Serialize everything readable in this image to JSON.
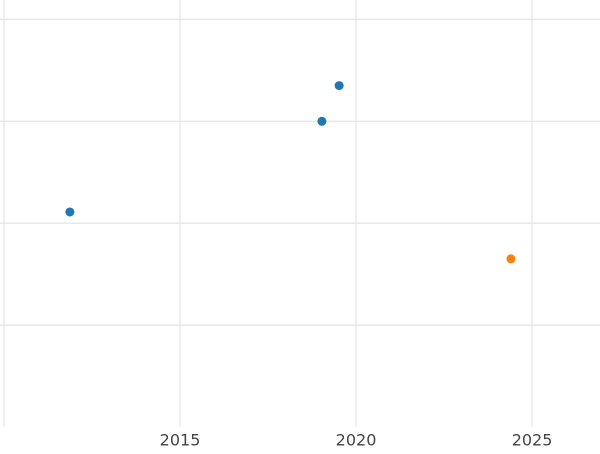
{
  "chart_data": {
    "type": "scatter",
    "series": [
      {
        "color": "#1f77b4",
        "x": [
          2011.87,
          2019.03,
          2019.52
        ],
        "values": [
          2.11,
          3.0,
          3.35
        ]
      },
      {
        "color": "#ff7f0e",
        "x": [
          2024.4
        ],
        "values": [
          1.65
        ]
      }
    ],
    "xlim": [
      2009.886,
      2026.93
    ],
    "ylim": [
      0,
      4.19
    ],
    "xticks": [
      2015,
      2020,
      2025
    ],
    "xgrid": [
      2010,
      2015,
      2020,
      2025
    ],
    "ygrid": [
      1,
      2,
      3,
      4
    ],
    "grid": true
  }
}
